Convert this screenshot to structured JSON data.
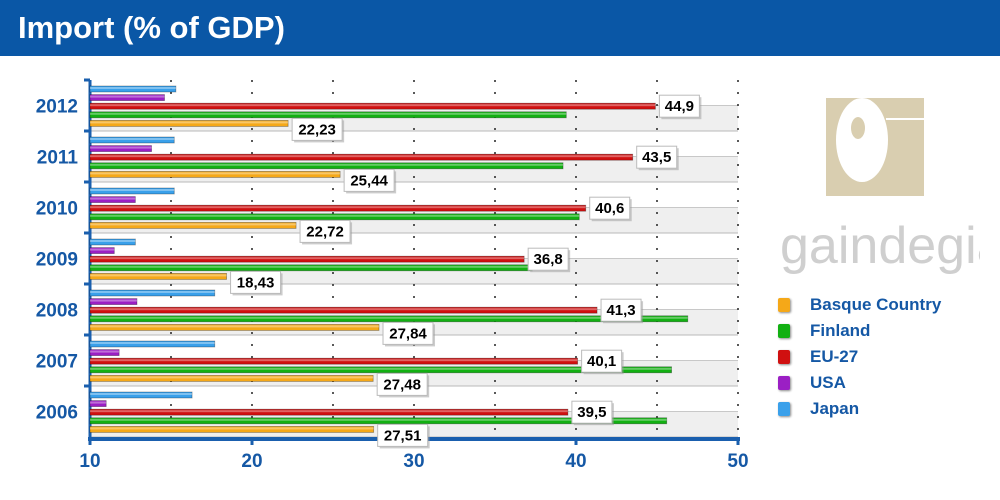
{
  "title": "Import (% of GDP)",
  "logo_text": "gaindegia",
  "chart_data": {
    "type": "bar",
    "orientation": "horizontal",
    "title": "Import (% of GDP)",
    "categories": [
      "2012",
      "2011",
      "2010",
      "2009",
      "2008",
      "2007",
      "2006"
    ],
    "xlim": [
      10,
      50
    ],
    "xticks": [
      10,
      20,
      30,
      40,
      50
    ],
    "grid": true,
    "legend_position": "right",
    "series": [
      {
        "name": "Japan",
        "color": "#3aa0ea",
        "values": [
          15.3,
          15.2,
          15.2,
          12.8,
          17.7,
          17.7,
          16.3
        ],
        "labels": [
          null,
          null,
          null,
          null,
          null,
          null,
          null
        ]
      },
      {
        "name": "USA",
        "color": "#9b1fc4",
        "values": [
          14.6,
          13.8,
          12.8,
          11.5,
          12.9,
          11.8,
          11.0
        ],
        "labels": [
          null,
          null,
          null,
          null,
          null,
          null,
          null
        ]
      },
      {
        "name": "EU-27",
        "color": "#d01010",
        "values": [
          44.9,
          43.5,
          40.6,
          36.8,
          41.3,
          40.1,
          39.5
        ],
        "labels": [
          "44,9",
          "43,5",
          "40,6",
          "36,8",
          "41,3",
          "40,1",
          "39,5"
        ]
      },
      {
        "name": "Finland",
        "color": "#12b012",
        "values": [
          39.4,
          39.2,
          40.2,
          37.3,
          46.9,
          45.9,
          45.6
        ],
        "labels": [
          null,
          null,
          null,
          null,
          null,
          null,
          null
        ]
      },
      {
        "name": "Basque Country",
        "color": "#f5a818",
        "values": [
          22.23,
          25.44,
          22.72,
          18.43,
          27.84,
          27.48,
          27.51
        ],
        "labels": [
          "22,23",
          "25,44",
          "22,72",
          "18,43",
          "27,84",
          "27,48",
          "27,51"
        ]
      }
    ],
    "legend_order": [
      "Basque Country",
      "Finland",
      "EU-27",
      "USA",
      "Japan"
    ]
  }
}
